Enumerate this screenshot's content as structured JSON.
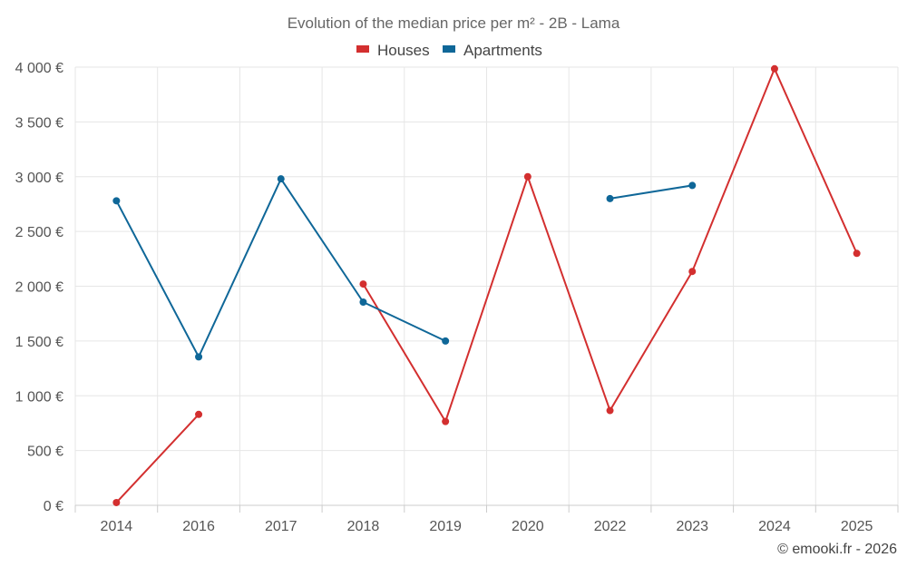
{
  "chart_data": {
    "type": "line",
    "title": "Evolution of the median price per m² - 2B - Lama",
    "categories": [
      "2014",
      "2016",
      "2017",
      "2018",
      "2019",
      "2020",
      "2022",
      "2023",
      "2024",
      "2025"
    ],
    "ylim": [
      0,
      4000
    ],
    "yticks": [
      0,
      500,
      1000,
      1500,
      2000,
      2500,
      3000,
      3500,
      4000
    ],
    "ytick_labels": [
      "0 €",
      "500 €",
      "1 000 €",
      "1 500 €",
      "2 000 €",
      "2 500 €",
      "3 000 €",
      "3 500 €",
      "4 000 €"
    ],
    "legend_position": "top-center",
    "grid": true,
    "series": [
      {
        "name": "Houses",
        "color": "#d32f2f",
        "values": [
          25,
          830,
          null,
          2020,
          765,
          3000,
          865,
          2135,
          3985,
          2300
        ]
      },
      {
        "name": "Apartments",
        "color": "#0f6798",
        "values": [
          2780,
          1355,
          2980,
          1855,
          1500,
          null,
          2800,
          2920,
          null,
          null
        ]
      }
    ],
    "credit": "© emooki.fr - 2026"
  }
}
